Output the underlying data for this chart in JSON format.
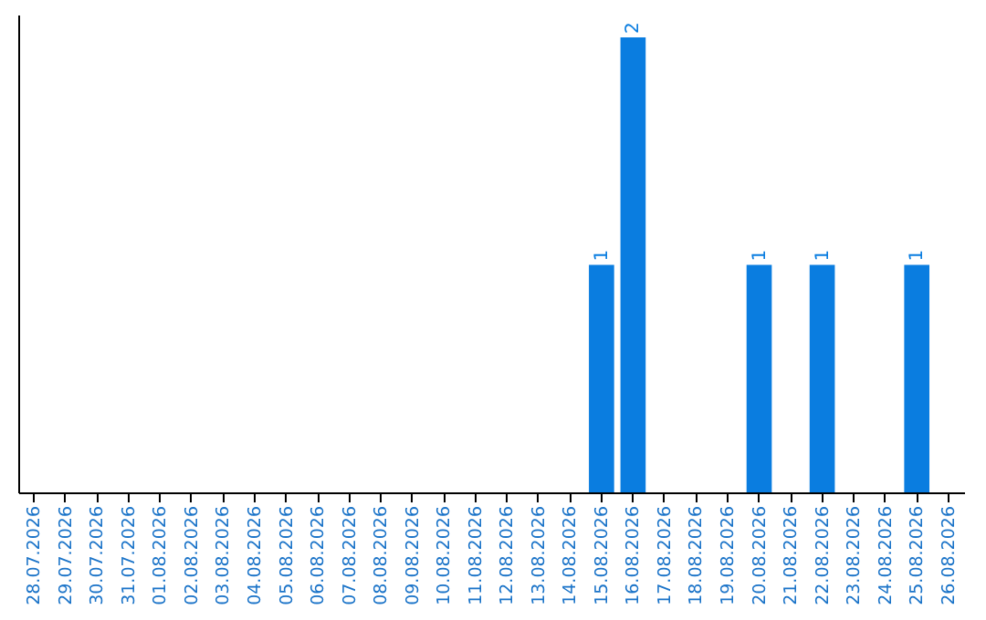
{
  "chart_data": {
    "type": "bar",
    "categories": [
      "28.07.2026",
      "29.07.2026",
      "30.07.2026",
      "31.07.2026",
      "01.08.2026",
      "02.08.2026",
      "03.08.2026",
      "04.08.2026",
      "05.08.2026",
      "06.08.2026",
      "07.08.2026",
      "08.08.2026",
      "09.08.2026",
      "10.08.2026",
      "11.08.2026",
      "12.08.2026",
      "13.08.2026",
      "14.08.2026",
      "15.08.2026",
      "16.08.2026",
      "17.08.2026",
      "18.08.2026",
      "19.08.2026",
      "20.08.2026",
      "21.08.2026",
      "22.08.2026",
      "23.08.2026",
      "24.08.2026",
      "25.08.2026",
      "26.08.2026"
    ],
    "values": [
      null,
      null,
      null,
      null,
      null,
      null,
      null,
      null,
      null,
      null,
      null,
      null,
      null,
      null,
      null,
      null,
      null,
      null,
      1,
      2,
      null,
      null,
      null,
      1,
      null,
      1,
      null,
      null,
      1,
      null
    ],
    "color": "#0a7de0",
    "ylim": [
      0,
      2.1
    ],
    "data_labels": true,
    "grid": false,
    "tick_labels": "x"
  }
}
